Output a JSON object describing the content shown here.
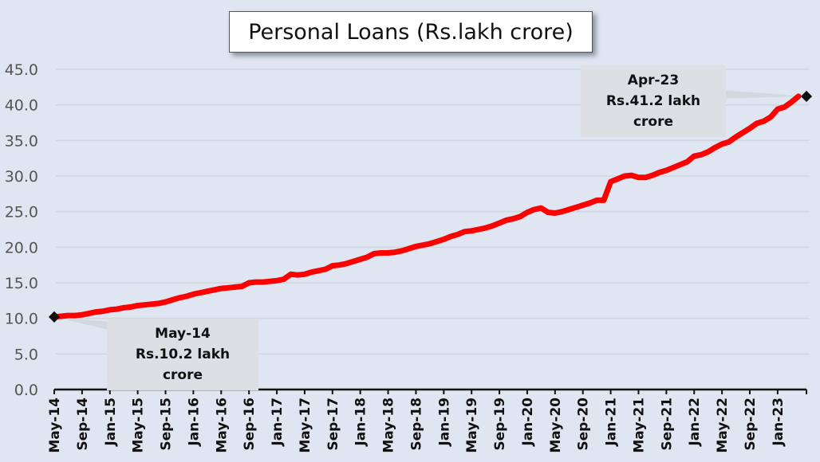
{
  "chart_data": {
    "type": "line",
    "title": "Personal Loans (Rs.lakh crore)",
    "xlabel": "",
    "ylabel": "",
    "ylim": [
      0,
      45
    ],
    "yticks": [
      "0.0",
      "5.0",
      "10.0",
      "15.0",
      "20.0",
      "25.0",
      "30.0",
      "35.0",
      "40.0",
      "45.0"
    ],
    "grid": true,
    "x_start": "May-14",
    "x_end": "Apr-23",
    "x_frequency": "monthly",
    "xtick_labels": [
      "May-14",
      "Sep-14",
      "Jan-15",
      "May-15",
      "Sep-15",
      "Jan-16",
      "May-16",
      "Sep-16",
      "Jan-17",
      "May-17",
      "Sep-17",
      "Jan-18",
      "May-18",
      "Sep-18",
      "Jan-19",
      "May-19",
      "Sep-19",
      "Jan-20",
      "May-20",
      "Sep-20",
      "Jan-21",
      "May-21",
      "Sep-21",
      "Jan-22",
      "May-22",
      "Sep-22",
      "Jan-23"
    ],
    "series": [
      {
        "color": "#ff0000",
        "values": [
          10.2,
          10.3,
          10.4,
          10.4,
          10.5,
          10.7,
          10.9,
          11.0,
          11.2,
          11.3,
          11.5,
          11.6,
          11.8,
          11.9,
          12.0,
          12.1,
          12.3,
          12.6,
          12.9,
          13.1,
          13.4,
          13.6,
          13.8,
          14.0,
          14.2,
          14.3,
          14.4,
          14.5,
          15.0,
          15.1,
          15.1,
          15.2,
          15.3,
          15.5,
          16.2,
          16.1,
          16.2,
          16.5,
          16.7,
          16.9,
          17.4,
          17.5,
          17.7,
          18.0,
          18.3,
          18.6,
          19.1,
          19.2,
          19.2,
          19.3,
          19.5,
          19.8,
          20.1,
          20.3,
          20.5,
          20.8,
          21.1,
          21.5,
          21.8,
          22.2,
          22.3,
          22.5,
          22.7,
          23.0,
          23.4,
          23.8,
          24.0,
          24.3,
          24.9,
          25.3,
          25.5,
          24.9,
          24.8,
          25.0,
          25.3,
          25.6,
          25.9,
          26.2,
          26.6,
          26.6,
          29.2,
          29.6,
          30.0,
          30.1,
          29.8,
          29.8,
          30.1,
          30.5,
          30.8,
          31.2,
          31.6,
          32.0,
          32.8,
          33.0,
          33.4,
          34.0,
          34.5,
          34.8,
          35.5,
          36.1,
          36.7,
          37.4,
          37.7,
          38.3,
          39.4,
          39.7,
          40.4,
          41.2
        ]
      }
    ],
    "annotations": [
      {
        "date": "May-14",
        "line1": "May-14",
        "line2": "Rs.10.2 lakh crore",
        "value": 10.2
      },
      {
        "date": "Apr-23",
        "line1": "Apr-23",
        "line2": "Rs.41.2 lakh crore",
        "value": 41.2
      }
    ]
  }
}
